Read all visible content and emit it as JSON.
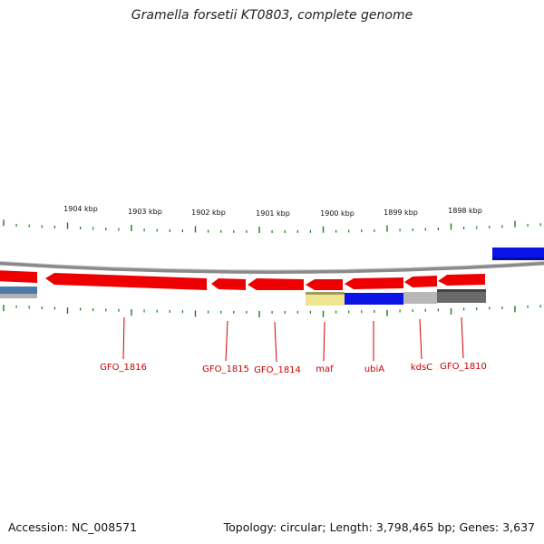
{
  "title": "Gramella forsetii KT0803, complete genome",
  "footer": {
    "accession": "Accession: NC_008571",
    "summary": "Topology: circular; Length: 3,798,465 bp; Genes: 3,637"
  },
  "colors": {
    "tick": "#1f7a1f",
    "gene_red": "#ee0000",
    "gene_label": "#cc0000",
    "backbone": "#888888",
    "blue_feature": "#0a14e6",
    "yellow_feature": "#ede58f",
    "light_gray_feature": "#b8b8b8",
    "dark_gray_feature": "#6a6a6a",
    "steel_blue_feature": "#4a7aa8"
  },
  "ruler": {
    "labels": [
      "1904 kbp",
      "1903 kbp",
      "1902 kbp",
      "1901 kbp",
      "1900 kbp",
      "1899 kbp",
      "1898 kbp"
    ]
  },
  "gene_labels": [
    "GFO_1816",
    "GFO_1815",
    "GFO_1814",
    "maf",
    "ubiA",
    "kdsC",
    "GFO_1810"
  ]
}
